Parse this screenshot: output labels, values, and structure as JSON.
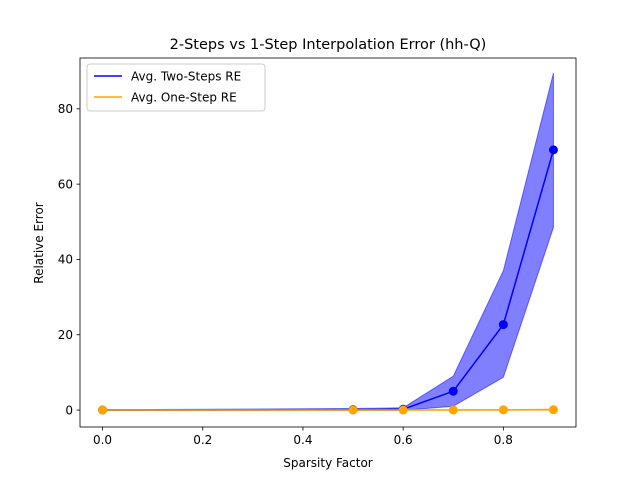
{
  "chart_data": {
    "type": "line",
    "title": "2-Steps vs 1-Step Interpolation Error (hh-Q)",
    "xlabel": "Sparsity Factor",
    "ylabel": "Relative Error",
    "xlim": [
      -0.045,
      0.945
    ],
    "ylim": [
      -4.5,
      93.5
    ],
    "x_ticks": [
      0.0,
      0.2,
      0.4,
      0.6,
      0.8
    ],
    "x_tick_labels": [
      "0.0",
      "0.2",
      "0.4",
      "0.6",
      "0.8"
    ],
    "y_ticks": [
      0,
      20,
      40,
      60,
      80
    ],
    "y_tick_labels": [
      "0",
      "20",
      "40",
      "60",
      "80"
    ],
    "grid": false,
    "legend_position": "upper-left",
    "x": [
      0.0,
      0.5,
      0.6,
      0.7,
      0.8,
      0.9
    ],
    "series": [
      {
        "name": "Avg. Two-Steps RE",
        "color": "#0000ff",
        "marker": "circle",
        "values": [
          0.0,
          0.1,
          0.2,
          5.0,
          22.7,
          69.1
        ],
        "band_upper": [
          0.1,
          0.4,
          0.6,
          9.0,
          37.0,
          89.5
        ],
        "band_lower": [
          -0.1,
          -0.1,
          -0.1,
          1.0,
          8.7,
          48.5
        ],
        "band_color": "#0000ff",
        "band_opacity": 0.5
      },
      {
        "name": "Avg. One-Step RE",
        "color": "#ffa500",
        "marker": "circle",
        "values": [
          0.0,
          0.0,
          0.0,
          0.0,
          0.05,
          0.1
        ],
        "band_upper": [
          0.05,
          0.05,
          0.05,
          0.1,
          0.15,
          0.25
        ],
        "band_lower": [
          -0.05,
          -0.05,
          -0.05,
          -0.05,
          -0.05,
          -0.05
        ],
        "band_color": "#ffa500",
        "band_opacity": 0.5
      }
    ]
  }
}
